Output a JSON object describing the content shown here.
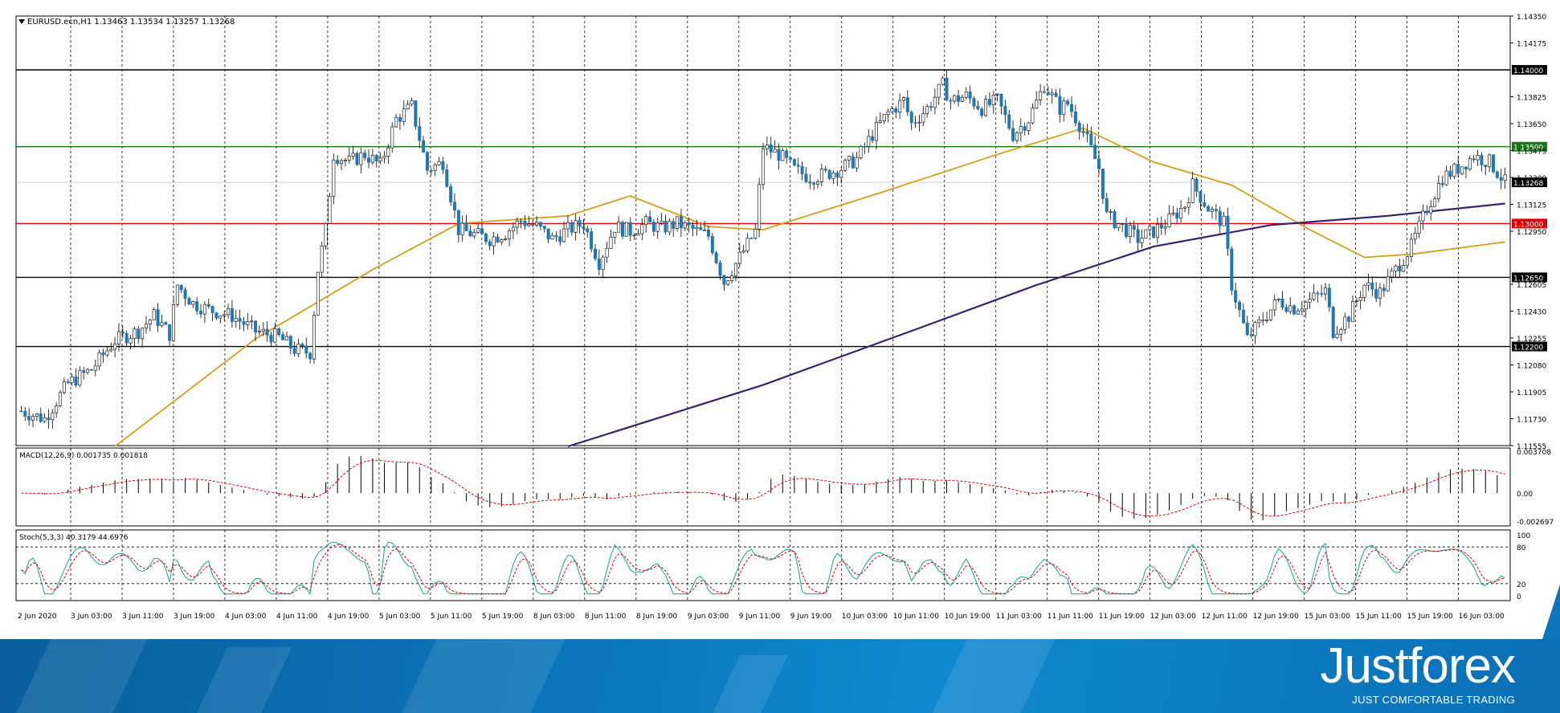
{
  "chart_data": {
    "type": "candlestick",
    "symbol_header": "EURUSD.ecn,H1",
    "ohlc_header": "1.13463 1.13534 1.13257 1.13268",
    "colors": {
      "bull": "#ffffff",
      "bear": "#1f77b4",
      "wick": "#000000",
      "ma_fast": "#d4a017",
      "ma_slow": "#3b1f6e",
      "green_level": "#1a7a1a",
      "red_level": "#e00000",
      "black_level": "#000000"
    },
    "price_axis": {
      "min": 1.11555,
      "max": 1.1435,
      "ticks": [
        "1.14350",
        "1.14175",
        "1.13825",
        "1.13650",
        "1.13475",
        "1.13300",
        "1.13125",
        "1.12950",
        "1.12605",
        "1.12430",
        "1.12255",
        "1.12080",
        "1.11905",
        "1.11730",
        "1.11555"
      ]
    },
    "levels": [
      {
        "price": 1.14,
        "label": "1.14000",
        "color": "black"
      },
      {
        "price": 1.135,
        "label": "1.13500",
        "color": "green"
      },
      {
        "price": 1.13268,
        "label": "1.13268",
        "color": "current"
      },
      {
        "price": 1.13,
        "label": "1.13000",
        "color": "red"
      },
      {
        "price": 1.1265,
        "label": "1.12650",
        "color": "black"
      },
      {
        "price": 1.122,
        "label": "1.12200",
        "color": "black"
      }
    ],
    "time_labels": [
      "2 Jun 2020",
      "3 Jun 03:00",
      "3 Jun 11:00",
      "3 Jun 19:00",
      "4 Jun 03:00",
      "4 Jun 11:00",
      "4 Jun 19:00",
      "5 Jun 03:00",
      "5 Jun 11:00",
      "5 Jun 19:00",
      "8 Jun 03:00",
      "8 Jun 11:00",
      "8 Jun 19:00",
      "9 Jun 03:00",
      "9 Jun 11:00",
      "9 Jun 19:00",
      "10 Jun 03:00",
      "10 Jun 11:00",
      "10 Jun 19:00",
      "11 Jun 03:00",
      "11 Jun 11:00",
      "11 Jun 19:00",
      "12 Jun 03:00",
      "12 Jun 11:00",
      "12 Jun 19:00",
      "15 Jun 03:00",
      "15 Jun 11:00",
      "15 Jun 19:00",
      "16 Jun 03:00"
    ],
    "close_path": [
      [
        0,
        1.1178
      ],
      [
        6,
        1.1173
      ],
      [
        12,
        1.1196
      ],
      [
        18,
        1.1205
      ],
      [
        24,
        1.1224
      ],
      [
        30,
        1.123
      ],
      [
        34,
        1.124
      ],
      [
        38,
        1.1228
      ],
      [
        40,
        1.126
      ],
      [
        44,
        1.1248
      ],
      [
        48,
        1.1244
      ],
      [
        54,
        1.124
      ],
      [
        60,
        1.123
      ],
      [
        66,
        1.1226
      ],
      [
        70,
        1.1218
      ],
      [
        74,
        1.1216
      ],
      [
        76,
        1.127
      ],
      [
        78,
        1.1296
      ],
      [
        80,
        1.1345
      ],
      [
        84,
        1.134
      ],
      [
        88,
        1.1345
      ],
      [
        92,
        1.1338
      ],
      [
        96,
        1.1368
      ],
      [
        100,
        1.1376
      ],
      [
        104,
        1.1335
      ],
      [
        108,
        1.134
      ],
      [
        112,
        1.1296
      ],
      [
        116,
        1.1293
      ],
      [
        120,
        1.129
      ],
      [
        124,
        1.1294
      ],
      [
        128,
        1.1302
      ],
      [
        132,
        1.1298
      ],
      [
        136,
        1.129
      ],
      [
        140,
        1.1296
      ],
      [
        144,
        1.13
      ],
      [
        148,
        1.1275
      ],
      [
        152,
        1.1298
      ],
      [
        156,
        1.1295
      ],
      [
        160,
        1.13
      ],
      [
        164,
        1.1297
      ],
      [
        168,
        1.13
      ],
      [
        172,
        1.1296
      ],
      [
        176,
        1.1292
      ],
      [
        180,
        1.1262
      ],
      [
        184,
        1.1278
      ],
      [
        188,
        1.1295
      ],
      [
        190,
        1.135
      ],
      [
        194,
        1.1345
      ],
      [
        198,
        1.1335
      ],
      [
        202,
        1.133
      ],
      [
        206,
        1.1332
      ],
      [
        210,
        1.1336
      ],
      [
        214,
        1.1342
      ],
      [
        218,
        1.1358
      ],
      [
        222,
        1.1372
      ],
      [
        226,
        1.138
      ],
      [
        228,
        1.1365
      ],
      [
        232,
        1.1375
      ],
      [
        236,
        1.139
      ],
      [
        238,
        1.138
      ],
      [
        242,
        1.1383
      ],
      [
        246,
        1.1375
      ],
      [
        250,
        1.138
      ],
      [
        254,
        1.1358
      ],
      [
        258,
        1.1368
      ],
      [
        262,
        1.139
      ],
      [
        266,
        1.1375
      ],
      [
        268,
        1.1378
      ],
      [
        272,
        1.136
      ],
      [
        276,
        1.1336
      ],
      [
        278,
        1.1305
      ],
      [
        282,
        1.1298
      ],
      [
        286,
        1.129
      ],
      [
        290,
        1.1295
      ],
      [
        294,
        1.1302
      ],
      [
        298,
        1.1312
      ],
      [
        300,
        1.1325
      ],
      [
        304,
        1.131
      ],
      [
        308,
        1.13
      ],
      [
        310,
        1.126
      ],
      [
        314,
        1.1225
      ],
      [
        318,
        1.1238
      ],
      [
        322,
        1.125
      ],
      [
        326,
        1.1245
      ],
      [
        330,
        1.125
      ],
      [
        334,
        1.1256
      ],
      [
        336,
        1.123
      ],
      [
        340,
        1.124
      ],
      [
        344,
        1.126
      ],
      [
        348,
        1.1255
      ],
      [
        352,
        1.127
      ],
      [
        356,
        1.1285
      ],
      [
        360,
        1.131
      ],
      [
        364,
        1.133
      ],
      [
        368,
        1.1336
      ],
      [
        372,
        1.1344
      ],
      [
        376,
        1.134
      ],
      [
        380,
        1.1327
      ]
    ],
    "ma_fast_path": [
      [
        24,
        1.1155
      ],
      [
        60,
        1.1225
      ],
      [
        90,
        1.127
      ],
      [
        112,
        1.13
      ],
      [
        140,
        1.1305
      ],
      [
        156,
        1.1318
      ],
      [
        176,
        1.1298
      ],
      [
        190,
        1.1296
      ],
      [
        220,
        1.132
      ],
      [
        250,
        1.1345
      ],
      [
        272,
        1.1362
      ],
      [
        290,
        1.134
      ],
      [
        310,
        1.1325
      ],
      [
        330,
        1.1296
      ],
      [
        344,
        1.1278
      ],
      [
        356,
        1.128
      ],
      [
        380,
        1.1288
      ]
    ],
    "ma_slow_path": [
      [
        140,
        1.1155
      ],
      [
        190,
        1.1195
      ],
      [
        230,
        1.1232
      ],
      [
        260,
        1.126
      ],
      [
        290,
        1.1285
      ],
      [
        320,
        1.1299
      ],
      [
        350,
        1.1305
      ],
      [
        380,
        1.1313
      ]
    ],
    "macd": {
      "label": "MACD(12,26,9) 0.001735 0.001818",
      "max": 0.003708,
      "min": -0.002697,
      "ticks": [
        "0.003708",
        "0.00",
        "-0.002697"
      ]
    },
    "stoch": {
      "label": "Stoch(5,3,3) 40.3179 44.6976",
      "ticks": [
        "100",
        "80",
        "20",
        "0"
      ],
      "levels": [
        80,
        20
      ]
    }
  },
  "branding": {
    "logo": "Justforex",
    "tagline": "JUST COMFORTABLE TRADING"
  }
}
